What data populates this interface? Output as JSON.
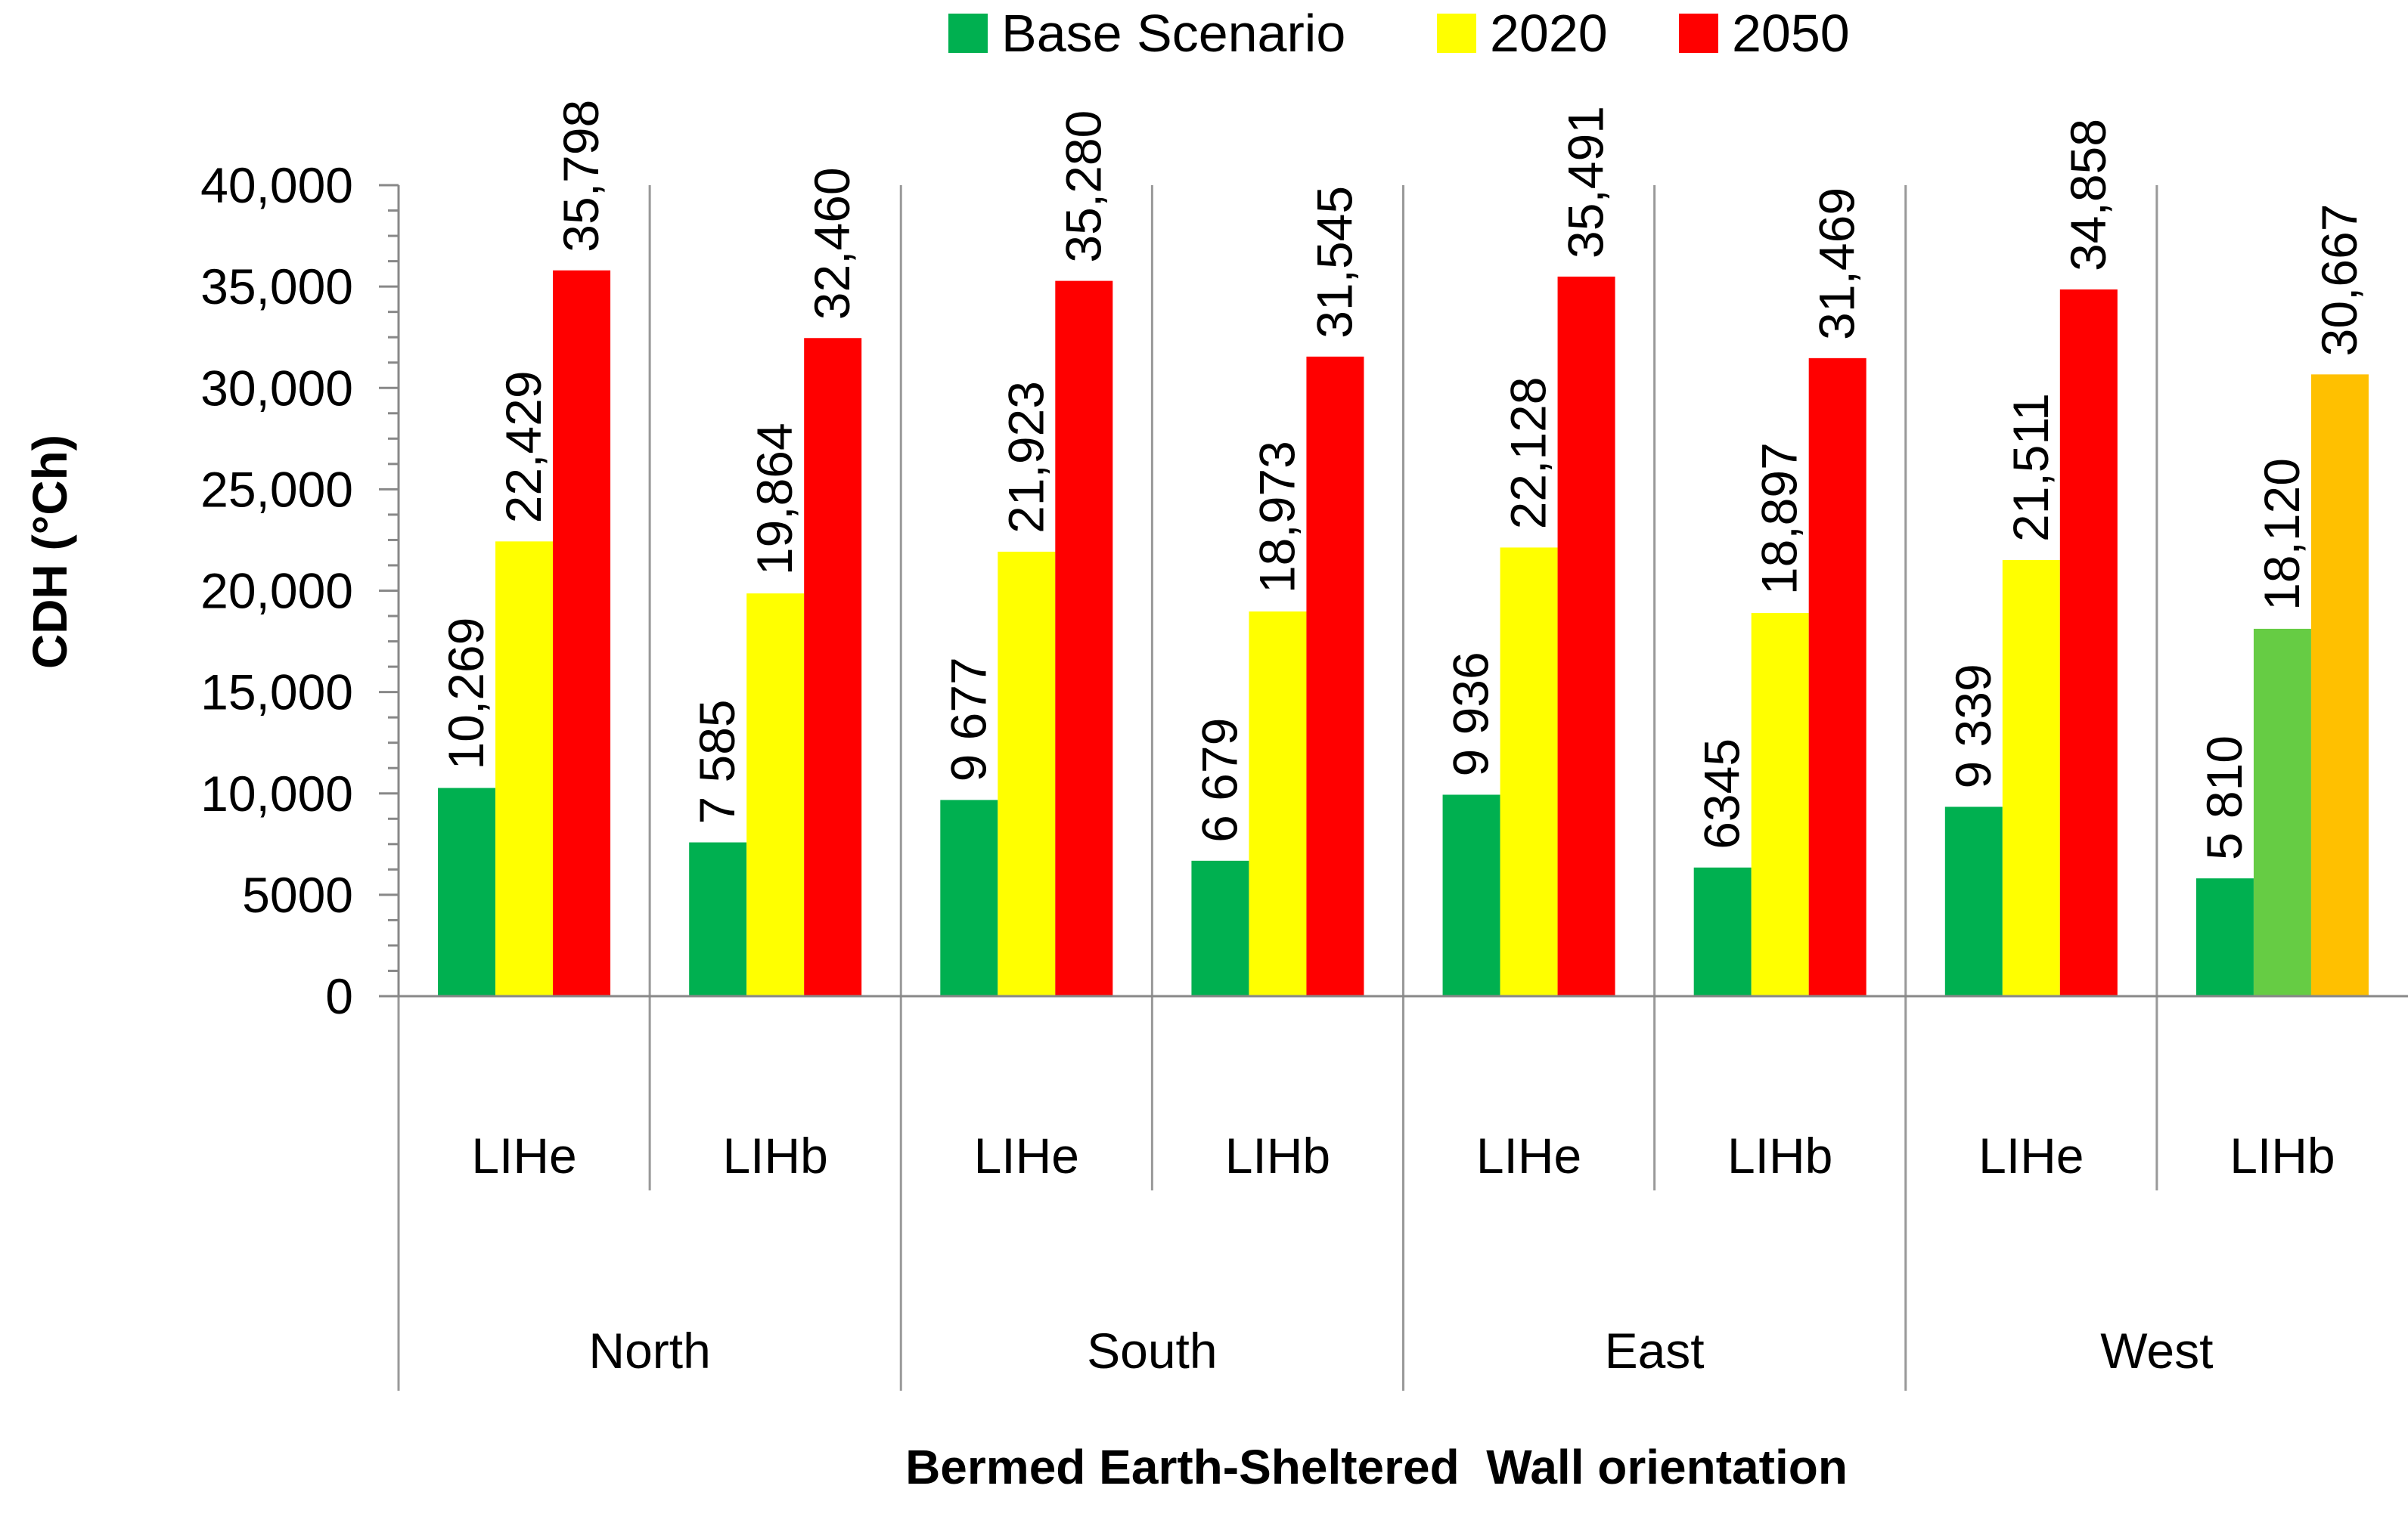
{
  "chart_data": {
    "type": "bar",
    "title": "",
    "xlabel": "Bermed Earth-Sheltered  Wall orientation",
    "ylabel": "CDH (°Ch)",
    "ylim": [
      0,
      40000
    ],
    "yticks": [
      {
        "value": 0,
        "label": "0"
      },
      {
        "value": 5000,
        "label": "5000"
      },
      {
        "value": 10000,
        "label": "10,000"
      },
      {
        "value": 15000,
        "label": "15,000"
      },
      {
        "value": 20000,
        "label": "20,000"
      },
      {
        "value": 25000,
        "label": "25,000"
      },
      {
        "value": 30000,
        "label": "30,000"
      },
      {
        "value": 35000,
        "label": "35,000"
      },
      {
        "value": 40000,
        "label": "40,000"
      }
    ],
    "groups": [
      {
        "name": "North",
        "categories": [
          "LIHe",
          "LIHb"
        ]
      },
      {
        "name": "South",
        "categories": [
          "LIHe",
          "LIHb"
        ]
      },
      {
        "name": "East",
        "categories": [
          "LIHe",
          "LIHb"
        ]
      },
      {
        "name": "West",
        "categories": [
          "LIHe",
          "LIHb"
        ]
      }
    ],
    "series": [
      {
        "name": "Base Scenario",
        "color": "#00B050",
        "values": [
          10269,
          7585,
          9677,
          6679,
          9936,
          6345,
          9339,
          5810
        ],
        "labels": [
          "10,269",
          "7 585",
          "9 677",
          "6 679",
          "9 936",
          "6345",
          "9 339",
          "5 810"
        ]
      },
      {
        "name": "2020",
        "color": "#FFFF00",
        "values": [
          22429,
          19864,
          21923,
          18973,
          22128,
          18897,
          21511,
          18120
        ],
        "labels": [
          "22,429",
          "19,864",
          "21,923",
          "18,973",
          "22,128",
          "18,897",
          "21,511",
          "18,120"
        ]
      },
      {
        "name": "2050",
        "color": "#FF0000",
        "values": [
          35798,
          32460,
          35280,
          31545,
          35491,
          31469,
          34858,
          30667
        ],
        "labels": [
          "35,798",
          "32,460",
          "35,280",
          "31,545",
          "35,491",
          "31,469",
          "34,858",
          "30,667"
        ]
      }
    ],
    "point_color_overrides": [
      {
        "series": 1,
        "index": 7,
        "color": "#66CC44"
      },
      {
        "series": 2,
        "index": 7,
        "color": "#FFC000"
      }
    ],
    "legend_position": "top-center"
  }
}
